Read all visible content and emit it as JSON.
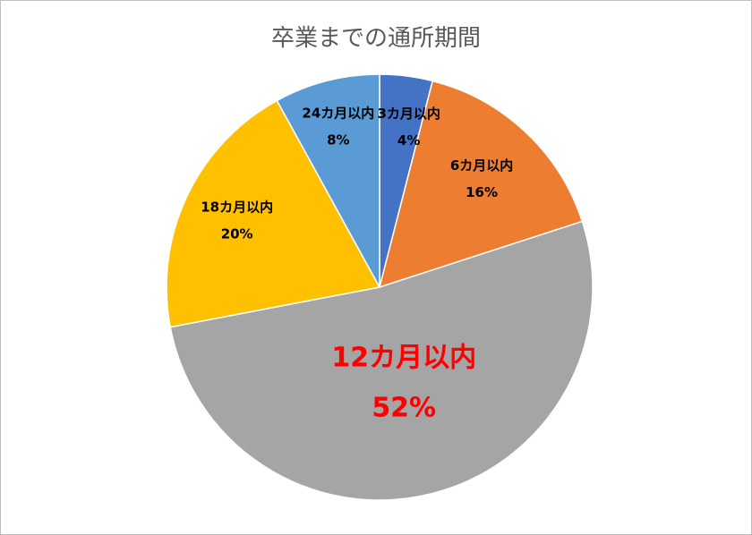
{
  "chart_data": {
    "type": "pie",
    "title": "卒業までの通所期間",
    "slices": [
      {
        "label": "3カ月以内",
        "value": 4,
        "value_label": "4%",
        "color": "#4472C4"
      },
      {
        "label": "6カ月以内",
        "value": 16,
        "value_label": "16%",
        "color": "#ED7D31"
      },
      {
        "label": "12カ月以内",
        "value": 52,
        "value_label": "52%",
        "color": "#A5A5A5",
        "label_color": "#FF0000"
      },
      {
        "label": "18カ月以内",
        "value": 20,
        "value_label": "20%",
        "color": "#FFC000"
      },
      {
        "label": "24カ月以内",
        "value": 8,
        "value_label": "8%",
        "color": "#5B9BD5"
      }
    ],
    "start_angle": "12 o'clock",
    "direction": "clockwise",
    "legend": "none",
    "data_labels": "inside"
  }
}
